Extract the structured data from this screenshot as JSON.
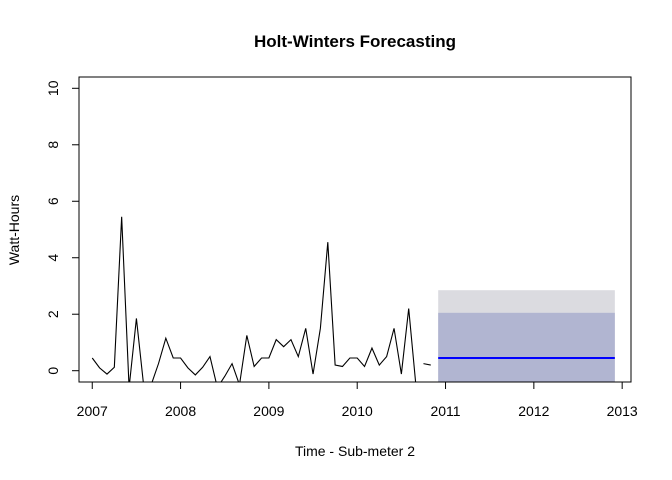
{
  "chart_data": {
    "type": "line",
    "title": "Holt-Winters Forecasting",
    "xlabel": "Time - Sub-meter 2",
    "ylabel": "Watt-Hours",
    "xlim": [
      2006.85,
      2013.1
    ],
    "ylim": [
      -0.4,
      10.4
    ],
    "x_ticks": [
      {
        "value": 2007,
        "label": "2007"
      },
      {
        "value": 2008,
        "label": "2008"
      },
      {
        "value": 2009,
        "label": "2009"
      },
      {
        "value": 2010,
        "label": "2010"
      },
      {
        "value": 2011,
        "label": "2011"
      },
      {
        "value": 2012,
        "label": "2012"
      },
      {
        "value": 2013,
        "label": "2013"
      }
    ],
    "y_ticks": [
      {
        "value": 0,
        "label": "0"
      },
      {
        "value": 2,
        "label": "2"
      },
      {
        "value": 4,
        "label": "4"
      },
      {
        "value": 6,
        "label": "6"
      },
      {
        "value": 8,
        "label": "8"
      },
      {
        "value": 10,
        "label": "10"
      }
    ],
    "observed": {
      "x": [
        2007.0,
        2007.083,
        2007.167,
        2007.25,
        2007.333,
        2007.417,
        2007.5,
        2007.583,
        2007.667,
        2007.75,
        2007.833,
        2007.917,
        2008.0,
        2008.083,
        2008.167,
        2008.25,
        2008.333,
        2008.417,
        2008.5,
        2008.583,
        2008.667,
        2008.75,
        2008.833,
        2008.917,
        2009.0,
        2009.083,
        2009.167,
        2009.25,
        2009.333,
        2009.417,
        2009.5,
        2009.583,
        2009.667,
        2009.75,
        2009.833,
        2009.917,
        2010.0,
        2010.083,
        2010.167,
        2010.25,
        2010.333,
        2010.417,
        2010.5,
        2010.583,
        2010.667,
        2010.75,
        2010.833
      ],
      "y": [
        0.45,
        0.1,
        -0.12,
        0.12,
        5.45,
        -0.6,
        1.85,
        -0.55,
        -0.5,
        0.25,
        1.15,
        0.45,
        0.45,
        0.1,
        -0.15,
        0.12,
        0.5,
        -0.6,
        -0.2,
        0.25,
        -0.5,
        1.25,
        0.15,
        0.45,
        0.45,
        1.1,
        0.85,
        1.1,
        0.5,
        1.5,
        -0.12,
        1.5,
        4.55,
        0.2,
        0.15,
        0.45,
        0.45,
        0.15,
        0.8,
        0.2,
        0.5,
        1.5,
        -0.12,
        2.2,
        -0.6,
        0.25,
        0.2
      ],
      "segments": [
        [
          0,
          44
        ],
        [
          45,
          46
        ]
      ]
    },
    "forecast": {
      "x_start": 2010.917,
      "x_end": 2012.917,
      "mean": 0.45,
      "lower_95": -0.4,
      "upper_95": 2.85,
      "lower_80": -0.4,
      "upper_80": 2.05
    },
    "colors": {
      "observed_line": "#000000",
      "forecast_line": "#0000ff",
      "band_95": "#dbdbe0",
      "band_80": "#b1b5d1",
      "axis": "#000000"
    }
  }
}
